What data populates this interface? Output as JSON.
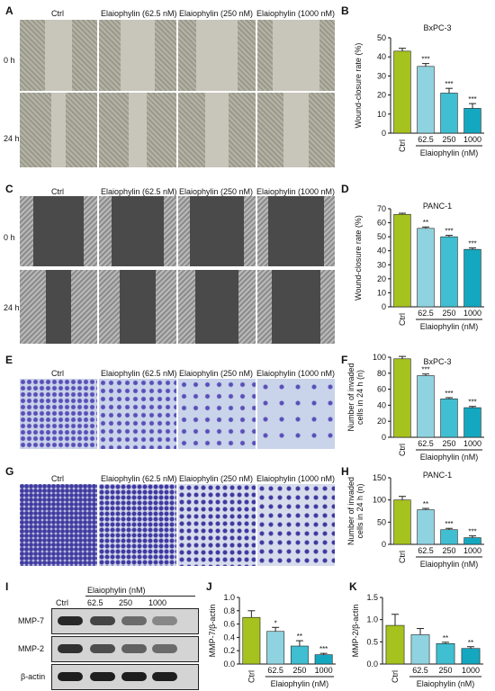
{
  "panel_letters": {
    "A": "A",
    "B": "B",
    "C": "C",
    "D": "D",
    "E": "E",
    "F": "F",
    "G": "G",
    "H": "H",
    "I": "I",
    "J": "J",
    "K": "K"
  },
  "image_columns": [
    "Ctrl",
    "Elaiophylin (62.5 nM)",
    "Elaiophylin (250 nM)",
    "Elaiophylin (1000 nM)"
  ],
  "time_rows": [
    "0 h",
    "24 h"
  ],
  "western_blot": {
    "treatment_label": "Elaiophylin (nM)",
    "lanes": [
      "Ctrl",
      "62.5",
      "250",
      "1000"
    ],
    "proteins": [
      "MMP-7",
      "MMP-2",
      "β-actin"
    ]
  },
  "colors": {
    "ctrl": "#a6c21e",
    "c62": "#8fd3e0",
    "c250": "#3fbfd1",
    "c1000": "#14a8c0"
  },
  "chart_data": [
    {
      "panel": "B",
      "type": "bar",
      "title": "BxPC-3",
      "ylabel": "Wound-closure rate (%)",
      "xlabel": "Elaiophylin (nM)",
      "categories": [
        "Ctrl",
        "62.5",
        "250",
        "1000"
      ],
      "ylim": [
        0,
        50
      ],
      "yticks": [
        "0",
        "10",
        "20",
        "30",
        "40",
        "50"
      ],
      "values": [
        43,
        35,
        21,
        13
      ],
      "errors": [
        1.5,
        1.5,
        2.5,
        2.5
      ],
      "significance": [
        "",
        "***",
        "***",
        "***"
      ]
    },
    {
      "panel": "D",
      "type": "bar",
      "title": "PANC-1",
      "ylabel": "Wound-closure rate (%)",
      "xlabel": "Elaiophylin (nM)",
      "categories": [
        "Ctrl",
        "62.5",
        "250",
        "1000"
      ],
      "ylim": [
        0,
        70
      ],
      "yticks": [
        "0",
        "10",
        "20",
        "30",
        "40",
        "50",
        "60",
        "70"
      ],
      "values": [
        66,
        56,
        50,
        41
      ],
      "errors": [
        0.8,
        1,
        1,
        1
      ],
      "significance": [
        "",
        "**",
        "***",
        "***"
      ]
    },
    {
      "panel": "F",
      "type": "bar",
      "title": "BxPC-3",
      "ylabel": "Number of invaded cells in 24 h (n)",
      "xlabel": "Elaiophylin (nM)",
      "categories": [
        "Ctrl",
        "62.5",
        "250",
        "1000"
      ],
      "ylim": [
        0,
        100
      ],
      "yticks": [
        "0",
        "20",
        "40",
        "60",
        "80",
        "100"
      ],
      "values": [
        98,
        77,
        48,
        37
      ],
      "errors": [
        3,
        2,
        1.5,
        1.5
      ],
      "significance": [
        "",
        "***",
        "***",
        "***"
      ]
    },
    {
      "panel": "H",
      "type": "bar",
      "title": "PANC-1",
      "ylabel": "Number of invaded cells in 24 h (n)",
      "xlabel": "Elaiophylin (nM)",
      "categories": [
        "Ctrl",
        "62.5",
        "250",
        "1000"
      ],
      "ylim": [
        0,
        150
      ],
      "yticks": [
        "0",
        "50",
        "100",
        "150"
      ],
      "values": [
        100,
        78,
        33,
        15
      ],
      "errors": [
        8,
        3,
        3,
        4
      ],
      "significance": [
        "",
        "**",
        "***",
        "***"
      ]
    },
    {
      "panel": "J",
      "type": "bar",
      "title": "",
      "ylabel": "MMP-7/β-actin",
      "xlabel": "Elaiophylin (nM)",
      "categories": [
        "Ctrl",
        "62.5",
        "250",
        "1000"
      ],
      "ylim": [
        0,
        1.0
      ],
      "yticks": [
        "0.0",
        "0.2",
        "0.4",
        "0.6",
        "0.8",
        "1.0"
      ],
      "values": [
        0.7,
        0.49,
        0.27,
        0.14
      ],
      "errors": [
        0.1,
        0.06,
        0.08,
        0.02
      ],
      "significance": [
        "",
        "*",
        "**",
        "***"
      ]
    },
    {
      "panel": "K",
      "type": "bar",
      "title": "",
      "ylabel": "MMP-2/β-actin",
      "xlabel": "Elaiophylin (nM)",
      "categories": [
        "Ctrl",
        "62.5",
        "250",
        "1000"
      ],
      "ylim": [
        0,
        1.5
      ],
      "yticks": [
        "0.0",
        "0.5",
        "1.0",
        "1.5"
      ],
      "values": [
        0.87,
        0.66,
        0.46,
        0.35
      ],
      "errors": [
        0.25,
        0.14,
        0.03,
        0.04
      ],
      "significance": [
        "",
        "",
        "**",
        "**"
      ]
    }
  ]
}
